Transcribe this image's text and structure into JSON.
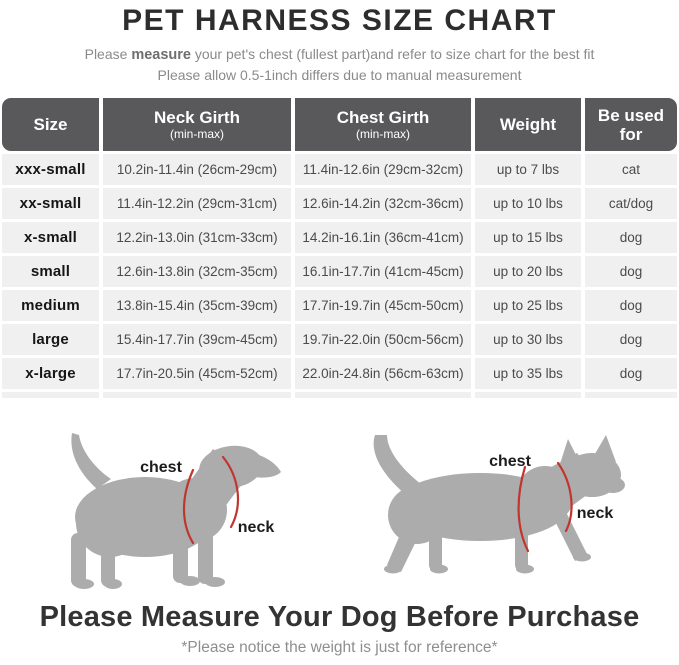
{
  "header": {
    "title": "PET HARNESS SIZE CHART",
    "subtitle1_pre": "Please ",
    "subtitle1_bold": "measure",
    "subtitle1_post": " your pet's chest (fullest part)and refer to size chart for the best fit",
    "subtitle2": "Please allow 0.5-1inch differs due to manual measurement"
  },
  "table": {
    "headers": [
      {
        "label": "Size",
        "sub": ""
      },
      {
        "label": "Neck Girth",
        "sub": "(min-max)"
      },
      {
        "label": "Chest Girth",
        "sub": "(min-max)"
      },
      {
        "label": "Weight",
        "sub": ""
      },
      {
        "label": "Be used for",
        "sub": ""
      }
    ],
    "rows": [
      [
        "xxx-small",
        "10.2in-11.4in (26cm-29cm)",
        "11.4in-12.6in (29cm-32cm)",
        "up to 7 lbs",
        "cat"
      ],
      [
        "xx-small",
        "11.4in-12.2in (29cm-31cm)",
        "12.6in-14.2in (32cm-36cm)",
        "up to 10 lbs",
        "cat/dog"
      ],
      [
        "x-small",
        "12.2in-13.0in (31cm-33cm)",
        "14.2in-16.1in (36cm-41cm)",
        "up to 15 lbs",
        "dog"
      ],
      [
        "small",
        "12.6in-13.8in (32cm-35cm)",
        "16.1in-17.7in (41cm-45cm)",
        "up to 20 lbs",
        "dog"
      ],
      [
        "medium",
        "13.8in-15.4in (35cm-39cm)",
        "17.7in-19.7in (45cm-50cm)",
        "up to 25 lbs",
        "dog"
      ],
      [
        "large",
        "15.4in-17.7in (39cm-45cm)",
        "19.7in-22.0in (50cm-56cm)",
        "up to 30 lbs",
        "dog"
      ],
      [
        "x-large",
        "17.7in-20.5in (45cm-52cm)",
        "22.0in-24.8in (56cm-63cm)",
        "up to 35 lbs",
        "dog"
      ]
    ]
  },
  "diagram": {
    "silhouette_color": "#acacac",
    "line_color": "#c0362f",
    "dog": {
      "chest_label": "chest",
      "neck_label": "neck"
    },
    "cat": {
      "chest_label": "chest",
      "neck_label": "neck"
    }
  },
  "footer": {
    "heading": "Please Measure Your Dog Before Purchase",
    "note": "*Please notice the weight is just for reference*"
  },
  "colors": {
    "title_text": "#2d2d2d",
    "subtitle_text": "#8a8a8a",
    "subtitle_bold": "#6f6f6f",
    "header_bg": "#59595b",
    "header_text": "#ffffff",
    "row_bg": "#f0f0f0",
    "cell_text": "#4b4b4b",
    "size_text": "#161616",
    "silhouette": "#acacac",
    "measure_line": "#c0362f",
    "label_text": "#1c1c1c",
    "heading_text": "#333333",
    "note_text": "#8e8e8e"
  }
}
